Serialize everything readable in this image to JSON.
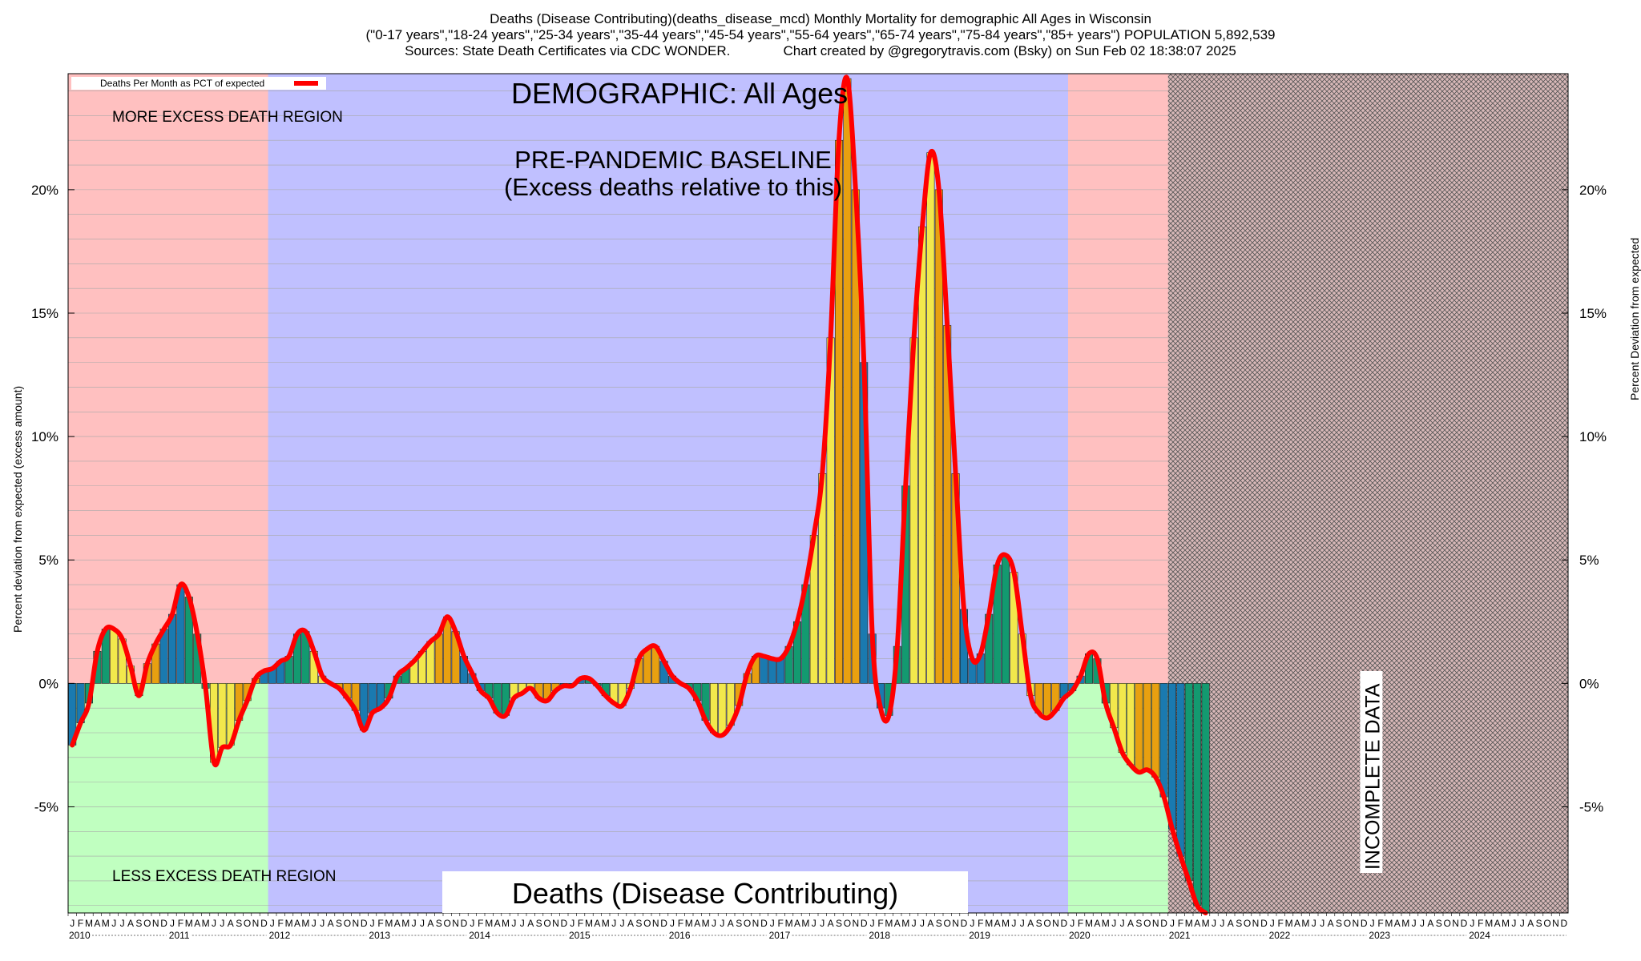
{
  "chart_data": {
    "type": "bar",
    "title_lines": [
      "Deaths (Disease Contributing)(deaths_disease_mcd) Monthly Mortality for demographic All Ages in Wisconsin",
      "(\"0-17 years\",\"18-24 years\",\"25-34 years\",\"35-44 years\",\"45-54 years\",\"55-64 years\",\"65-74 years\",\"75-84 years\",\"85+ years\") POPULATION 5,892,539",
      "Sources: State Death Certificates via CDC WONDER.              Chart created by @gregorytravis.com (Bsky) on Sun Feb 02 18:38:07 2025"
    ],
    "ylabel": "Percent deviation from expected (excess amount)",
    "ylabel_right": "Percent Deviation from expected",
    "legend": {
      "label": "Deaths Per Month as PCT of expected",
      "color": "#ff0000",
      "position": "top-left"
    },
    "ylim": [
      -9.3,
      24.7
    ],
    "yticks": [
      -5,
      0,
      5,
      10,
      15,
      20
    ],
    "ytick_labels": [
      "-5%",
      "0%",
      "5%",
      "10%",
      "15%",
      "20%"
    ],
    "grid": true,
    "month_letters": [
      "J",
      "F",
      "M",
      "A",
      "M",
      "J",
      "J",
      "A",
      "S",
      "O",
      "N",
      "D"
    ],
    "years": [
      "2010",
      "2011",
      "2012",
      "2013",
      "2014",
      "2015",
      "2016",
      "2017",
      "2018",
      "2019",
      "2020",
      "2021",
      "2022",
      "2023",
      "2024"
    ],
    "season_colors": [
      "#1a7ab0",
      "#139a70",
      "#f2e84c",
      "#e8a010"
    ],
    "regions": {
      "more_label": "MORE EXCESS DEATH REGION",
      "less_label": "LESS EXCESS DEATH REGION",
      "more_color": "#ffc0c0",
      "less_color": "#c0ffc0",
      "baseline_color": "#c0c0ff",
      "baseline_years": [
        "2012",
        "2019"
      ],
      "baseline_label_1": "PRE-PANDEMIC BASELINE",
      "baseline_label_2": "(Excess deaths relative to this)",
      "incomplete_label": "INCOMPLETE DATA",
      "incomplete_months": 5
    },
    "demographic_label": "DEMOGRAPHIC: All Ages",
    "metric_label": "Deaths (Disease Contributing)",
    "values": [
      -2.5,
      -1.6,
      -0.8,
      1.3,
      2.2,
      2.2,
      1.8,
      0.7,
      -0.5,
      0.8,
      1.6,
      2.2,
      2.8,
      4.0,
      3.5,
      2.0,
      -0.2,
      -3.2,
      -2.6,
      -2.5,
      -1.5,
      -0.7,
      0.2,
      0.5,
      0.6,
      0.9,
      1.1,
      2.0,
      2.1,
      1.3,
      0.3,
      0.0,
      -0.2,
      -0.6,
      -1.1,
      -1.9,
      -1.2,
      -1.0,
      -0.6,
      0.3,
      0.6,
      0.9,
      1.3,
      1.7,
      2.0,
      2.7,
      2.1,
      1.1,
      0.4,
      -0.3,
      -0.6,
      -1.2,
      -1.3,
      -0.6,
      -0.4,
      -0.2,
      -0.6,
      -0.7,
      -0.3,
      -0.1,
      -0.1,
      0.2,
      0.2,
      -0.1,
      -0.5,
      -0.8,
      -0.9,
      -0.2,
      1.0,
      1.4,
      1.5,
      0.9,
      0.3,
      0.0,
      -0.2,
      -0.7,
      -1.5,
      -2.0,
      -2.1,
      -1.7,
      -0.9,
      0.4,
      1.1,
      1.1,
      1.0,
      1.0,
      1.5,
      2.5,
      4.0,
      6.0,
      8.5,
      14.0,
      22.0,
      24.5,
      20.0,
      13.0,
      2.0,
      -1.0,
      -1.3,
      1.5,
      8.0,
      14.0,
      18.5,
      21.5,
      20.0,
      14.5,
      8.5,
      3.0,
      1.0,
      1.2,
      2.8,
      4.8,
      5.2,
      4.5,
      2.0,
      -0.5,
      -1.2,
      -1.4,
      -1.1,
      -0.6,
      -0.3,
      0.3,
      1.2,
      1.0,
      -0.8,
      -1.8,
      -2.8,
      -3.3,
      -3.6,
      -3.5,
      -3.8,
      -4.6,
      -5.9,
      -7.0,
      -8.0,
      -9.0,
      -9.3
    ]
  }
}
